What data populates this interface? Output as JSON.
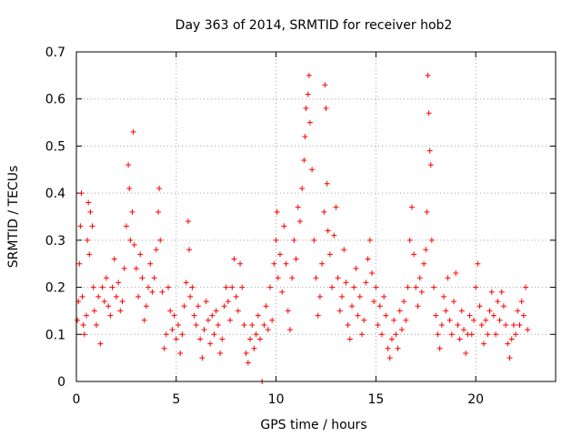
{
  "chart_data": {
    "type": "scatter",
    "title": "Day 363 of 2014, SRMTID for receiver hob2",
    "xlabel": "GPS time / hours",
    "ylabel": "SRMTID / TECUs",
    "xlim": [
      0,
      24
    ],
    "ylim": [
      0,
      0.7
    ],
    "xticks": [
      0,
      5,
      10,
      15,
      20
    ],
    "yticks": [
      0,
      0.1,
      0.2,
      0.3,
      0.4,
      0.5,
      0.6,
      0.7
    ],
    "grid": true,
    "marker": "+",
    "color": "#ff0000",
    "series": [
      {
        "name": "SRMTID hob2",
        "points": [
          [
            0.05,
            0.13
          ],
          [
            0.1,
            0.17
          ],
          [
            0.15,
            0.25
          ],
          [
            0.2,
            0.33
          ],
          [
            0.25,
            0.4
          ],
          [
            0.3,
            0.18
          ],
          [
            0.35,
            0.12
          ],
          [
            0.4,
            0.1
          ],
          [
            0.5,
            0.14
          ],
          [
            0.55,
            0.3
          ],
          [
            0.6,
            0.38
          ],
          [
            0.65,
            0.27
          ],
          [
            0.7,
            0.36
          ],
          [
            0.8,
            0.33
          ],
          [
            0.85,
            0.2
          ],
          [
            0.9,
            0.15
          ],
          [
            1.0,
            0.12
          ],
          [
            1.1,
            0.18
          ],
          [
            1.2,
            0.08
          ],
          [
            1.3,
            0.2
          ],
          [
            1.4,
            0.17
          ],
          [
            1.5,
            0.22
          ],
          [
            1.6,
            0.16
          ],
          [
            1.7,
            0.14
          ],
          [
            1.8,
            0.2
          ],
          [
            1.9,
            0.26
          ],
          [
            2.0,
            0.18
          ],
          [
            2.1,
            0.21
          ],
          [
            2.2,
            0.15
          ],
          [
            2.3,
            0.17
          ],
          [
            2.4,
            0.24
          ],
          [
            2.5,
            0.33
          ],
          [
            2.6,
            0.46
          ],
          [
            2.65,
            0.41
          ],
          [
            2.7,
            0.3
          ],
          [
            2.8,
            0.36
          ],
          [
            2.85,
            0.53
          ],
          [
            2.9,
            0.29
          ],
          [
            3.0,
            0.24
          ],
          [
            3.1,
            0.18
          ],
          [
            3.2,
            0.27
          ],
          [
            3.3,
            0.22
          ],
          [
            3.4,
            0.13
          ],
          [
            3.5,
            0.16
          ],
          [
            3.6,
            0.2
          ],
          [
            3.7,
            0.25
          ],
          [
            3.8,
            0.19
          ],
          [
            3.9,
            0.22
          ],
          [
            4.0,
            0.28
          ],
          [
            4.1,
            0.36
          ],
          [
            4.15,
            0.41
          ],
          [
            4.2,
            0.3
          ],
          [
            4.3,
            0.19
          ],
          [
            4.4,
            0.07
          ],
          [
            4.5,
            0.1
          ],
          [
            4.6,
            0.2
          ],
          [
            4.7,
            0.15
          ],
          [
            4.8,
            0.11
          ],
          [
            4.9,
            0.14
          ],
          [
            5.0,
            0.09
          ],
          [
            5.1,
            0.12
          ],
          [
            5.2,
            0.06
          ],
          [
            5.3,
            0.1
          ],
          [
            5.4,
            0.16
          ],
          [
            5.5,
            0.21
          ],
          [
            5.6,
            0.34
          ],
          [
            5.65,
            0.28
          ],
          [
            5.7,
            0.18
          ],
          [
            5.8,
            0.2
          ],
          [
            5.9,
            0.14
          ],
          [
            6.0,
            0.12
          ],
          [
            6.1,
            0.16
          ],
          [
            6.2,
            0.09
          ],
          [
            6.3,
            0.05
          ],
          [
            6.4,
            0.11
          ],
          [
            6.5,
            0.17
          ],
          [
            6.6,
            0.13
          ],
          [
            6.7,
            0.08
          ],
          [
            6.8,
            0.14
          ],
          [
            6.9,
            0.1
          ],
          [
            7.0,
            0.15
          ],
          [
            7.1,
            0.12
          ],
          [
            7.2,
            0.06
          ],
          [
            7.3,
            0.09
          ],
          [
            7.4,
            0.16
          ],
          [
            7.5,
            0.2
          ],
          [
            7.6,
            0.17
          ],
          [
            7.7,
            0.13
          ],
          [
            7.8,
            0.2
          ],
          [
            7.9,
            0.26
          ],
          [
            8.0,
            0.18
          ],
          [
            8.1,
            0.15
          ],
          [
            8.2,
            0.25
          ],
          [
            8.3,
            0.2
          ],
          [
            8.4,
            0.12
          ],
          [
            8.5,
            0.06
          ],
          [
            8.6,
            0.04
          ],
          [
            8.7,
            0.09
          ],
          [
            8.8,
            0.12
          ],
          [
            8.9,
            0.07
          ],
          [
            9.0,
            0.1
          ],
          [
            9.1,
            0.14
          ],
          [
            9.2,
            0.09
          ],
          [
            9.3,
            0.0
          ],
          [
            9.4,
            0.12
          ],
          [
            9.5,
            0.16
          ],
          [
            9.6,
            0.11
          ],
          [
            9.7,
            0.2
          ],
          [
            9.8,
            0.13
          ],
          [
            9.9,
            0.25
          ],
          [
            10.0,
            0.3
          ],
          [
            10.05,
            0.36
          ],
          [
            10.1,
            0.22
          ],
          [
            10.2,
            0.27
          ],
          [
            10.3,
            0.19
          ],
          [
            10.4,
            0.33
          ],
          [
            10.5,
            0.25
          ],
          [
            10.6,
            0.15
          ],
          [
            10.7,
            0.11
          ],
          [
            10.8,
            0.22
          ],
          [
            10.9,
            0.3
          ],
          [
            11.0,
            0.26
          ],
          [
            11.1,
            0.37
          ],
          [
            11.2,
            0.34
          ],
          [
            11.3,
            0.41
          ],
          [
            11.4,
            0.47
          ],
          [
            11.45,
            0.52
          ],
          [
            11.5,
            0.58
          ],
          [
            11.6,
            0.61
          ],
          [
            11.65,
            0.65
          ],
          [
            11.7,
            0.55
          ],
          [
            11.8,
            0.45
          ],
          [
            11.9,
            0.3
          ],
          [
            12.0,
            0.22
          ],
          [
            12.1,
            0.14
          ],
          [
            12.2,
            0.18
          ],
          [
            12.3,
            0.25
          ],
          [
            12.4,
            0.36
          ],
          [
            12.45,
            0.63
          ],
          [
            12.5,
            0.58
          ],
          [
            12.55,
            0.42
          ],
          [
            12.6,
            0.32
          ],
          [
            12.7,
            0.27
          ],
          [
            12.8,
            0.2
          ],
          [
            12.9,
            0.31
          ],
          [
            13.0,
            0.37
          ],
          [
            13.1,
            0.22
          ],
          [
            13.2,
            0.15
          ],
          [
            13.3,
            0.18
          ],
          [
            13.4,
            0.28
          ],
          [
            13.5,
            0.21
          ],
          [
            13.6,
            0.12
          ],
          [
            13.7,
            0.09
          ],
          [
            13.8,
            0.16
          ],
          [
            13.9,
            0.2
          ],
          [
            14.0,
            0.24
          ],
          [
            14.1,
            0.14
          ],
          [
            14.2,
            0.18
          ],
          [
            14.3,
            0.1
          ],
          [
            14.4,
            0.13
          ],
          [
            14.5,
            0.21
          ],
          [
            14.6,
            0.26
          ],
          [
            14.7,
            0.3
          ],
          [
            14.8,
            0.23
          ],
          [
            14.9,
            0.17
          ],
          [
            15.0,
            0.2
          ],
          [
            15.1,
            0.12
          ],
          [
            15.2,
            0.16
          ],
          [
            15.3,
            0.1
          ],
          [
            15.4,
            0.18
          ],
          [
            15.5,
            0.14
          ],
          [
            15.6,
            0.07
          ],
          [
            15.7,
            0.05
          ],
          [
            15.8,
            0.09
          ],
          [
            15.9,
            0.13
          ],
          [
            16.0,
            0.1
          ],
          [
            16.1,
            0.07
          ],
          [
            16.2,
            0.15
          ],
          [
            16.3,
            0.11
          ],
          [
            16.4,
            0.17
          ],
          [
            16.5,
            0.13
          ],
          [
            16.6,
            0.2
          ],
          [
            16.7,
            0.3
          ],
          [
            16.8,
            0.37
          ],
          [
            16.9,
            0.27
          ],
          [
            17.0,
            0.2
          ],
          [
            17.1,
            0.16
          ],
          [
            17.2,
            0.22
          ],
          [
            17.3,
            0.19
          ],
          [
            17.4,
            0.25
          ],
          [
            17.5,
            0.28
          ],
          [
            17.55,
            0.36
          ],
          [
            17.6,
            0.65
          ],
          [
            17.65,
            0.57
          ],
          [
            17.7,
            0.49
          ],
          [
            17.75,
            0.46
          ],
          [
            17.8,
            0.3
          ],
          [
            17.9,
            0.2
          ],
          [
            18.0,
            0.14
          ],
          [
            18.1,
            0.1
          ],
          [
            18.2,
            0.07
          ],
          [
            18.3,
            0.12
          ],
          [
            18.4,
            0.18
          ],
          [
            18.5,
            0.15
          ],
          [
            18.6,
            0.22
          ],
          [
            18.7,
            0.13
          ],
          [
            18.8,
            0.1
          ],
          [
            18.9,
            0.17
          ],
          [
            19.0,
            0.23
          ],
          [
            19.1,
            0.12
          ],
          [
            19.2,
            0.09
          ],
          [
            19.3,
            0.15
          ],
          [
            19.4,
            0.11
          ],
          [
            19.5,
            0.06
          ],
          [
            19.6,
            0.1
          ],
          [
            19.7,
            0.14
          ],
          [
            19.8,
            0.1
          ],
          [
            19.9,
            0.13
          ],
          [
            20.0,
            0.2
          ],
          [
            20.1,
            0.25
          ],
          [
            20.2,
            0.16
          ],
          [
            20.3,
            0.12
          ],
          [
            20.4,
            0.08
          ],
          [
            20.5,
            0.13
          ],
          [
            20.6,
            0.1
          ],
          [
            20.7,
            0.15
          ],
          [
            20.8,
            0.19
          ],
          [
            20.9,
            0.14
          ],
          [
            21.0,
            0.1
          ],
          [
            21.1,
            0.17
          ],
          [
            21.2,
            0.13
          ],
          [
            21.3,
            0.19
          ],
          [
            21.4,
            0.16
          ],
          [
            21.5,
            0.12
          ],
          [
            21.6,
            0.08
          ],
          [
            21.7,
            0.05
          ],
          [
            21.8,
            0.09
          ],
          [
            21.9,
            0.12
          ],
          [
            22.0,
            0.1
          ],
          [
            22.1,
            0.15
          ],
          [
            22.2,
            0.12
          ],
          [
            22.3,
            0.17
          ],
          [
            22.4,
            0.14
          ],
          [
            22.5,
            0.2
          ],
          [
            22.6,
            0.11
          ]
        ]
      }
    ]
  }
}
